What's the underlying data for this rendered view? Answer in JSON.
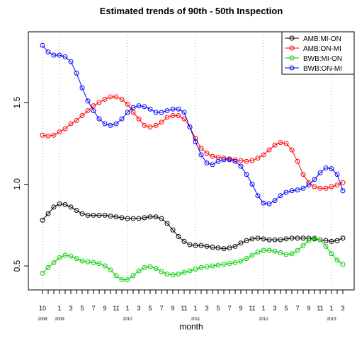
{
  "chart_data": {
    "type": "line",
    "title": "Estimated trends of 90th - 50th Inspection",
    "xlabel": "month",
    "x": [
      0,
      1,
      2,
      3,
      4,
      5,
      6,
      7,
      8,
      9,
      10,
      11,
      12,
      13,
      14,
      15,
      16,
      17,
      18,
      19,
      20,
      21,
      22,
      23,
      24,
      25,
      26,
      27,
      28,
      29,
      30,
      31,
      32,
      33,
      34,
      35,
      36,
      37,
      38,
      39,
      40,
      41,
      42,
      43,
      44,
      45,
      46,
      47,
      48,
      49,
      50,
      51,
      52,
      53
    ],
    "xlim": [
      -2.5,
      55
    ],
    "xticks": [
      {
        "value": 0,
        "label": "10"
      },
      {
        "value": 3,
        "label": "1"
      },
      {
        "value": 5,
        "label": "3"
      },
      {
        "value": 7,
        "label": "5"
      },
      {
        "value": 9,
        "label": "7"
      },
      {
        "value": 11,
        "label": "9"
      },
      {
        "value": 13,
        "label": "11"
      },
      {
        "value": 15,
        "label": "1"
      },
      {
        "value": 17,
        "label": "3"
      },
      {
        "value": 19,
        "label": "5"
      },
      {
        "value": 21,
        "label": "7"
      },
      {
        "value": 23,
        "label": "9"
      },
      {
        "value": 25,
        "label": "11"
      },
      {
        "value": 27,
        "label": "1"
      },
      {
        "value": 29,
        "label": "3"
      },
      {
        "value": 31,
        "label": "5"
      },
      {
        "value": 33,
        "label": "7"
      },
      {
        "value": 35,
        "label": "9"
      },
      {
        "value": 37,
        "label": "11"
      },
      {
        "value": 39,
        "label": "1"
      },
      {
        "value": 41,
        "label": "3"
      },
      {
        "value": 43,
        "label": "5"
      },
      {
        "value": 45,
        "label": "7"
      },
      {
        "value": 47,
        "label": "9"
      },
      {
        "value": 49,
        "label": "11"
      },
      {
        "value": 51,
        "label": "1"
      },
      {
        "value": 53,
        "label": "3"
      }
    ],
    "year_ticks": [
      {
        "value": 0,
        "label": "2008"
      },
      {
        "value": 3,
        "label": "2009"
      },
      {
        "value": 15,
        "label": "2010"
      },
      {
        "value": 27,
        "label": "2011"
      },
      {
        "value": 39,
        "label": "2012"
      },
      {
        "value": 51,
        "label": "2013"
      }
    ],
    "ylim": [
      0.353,
      1.933
    ],
    "yticks": [
      0.5,
      {
        "value": 1,
        "label": "1.0"
      },
      1.5
    ],
    "legend_position": "top-right",
    "series": [
      {
        "name": "AMB:MI-ON",
        "color": "#000000",
        "values": [
          0.78,
          0.82,
          0.86,
          0.88,
          0.875,
          0.86,
          0.84,
          0.82,
          0.81,
          0.81,
          0.81,
          0.81,
          0.805,
          0.8,
          0.795,
          0.79,
          0.79,
          0.79,
          0.795,
          0.8,
          0.8,
          0.79,
          0.76,
          0.72,
          0.68,
          0.65,
          0.63,
          0.625,
          0.625,
          0.62,
          0.615,
          0.61,
          0.605,
          0.61,
          0.62,
          0.64,
          0.655,
          0.665,
          0.67,
          0.665,
          0.66,
          0.66,
          0.66,
          0.665,
          0.67,
          0.67,
          0.67,
          0.67,
          0.665,
          0.66,
          0.655,
          0.65,
          0.655,
          0.67
        ]
      },
      {
        "name": "AMB:ON-MI",
        "color": "#ff0000",
        "values": [
          1.3,
          1.295,
          1.3,
          1.32,
          1.34,
          1.37,
          1.39,
          1.42,
          1.45,
          1.48,
          1.5,
          1.52,
          1.535,
          1.535,
          1.52,
          1.49,
          1.44,
          1.4,
          1.36,
          1.35,
          1.36,
          1.38,
          1.41,
          1.42,
          1.42,
          1.4,
          1.35,
          1.28,
          1.22,
          1.19,
          1.17,
          1.165,
          1.16,
          1.155,
          1.15,
          1.145,
          1.14,
          1.145,
          1.16,
          1.18,
          1.21,
          1.24,
          1.255,
          1.25,
          1.21,
          1.14,
          1.06,
          1.01,
          0.985,
          0.975,
          0.975,
          0.985,
          0.995,
          1.01
        ]
      },
      {
        "name": "BWB:MI-ON",
        "color": "#00cd00",
        "values": [
          0.455,
          0.49,
          0.52,
          0.55,
          0.565,
          0.56,
          0.545,
          0.53,
          0.525,
          0.52,
          0.515,
          0.5,
          0.475,
          0.44,
          0.415,
          0.415,
          0.44,
          0.47,
          0.49,
          0.495,
          0.485,
          0.465,
          0.45,
          0.445,
          0.45,
          0.46,
          0.47,
          0.48,
          0.49,
          0.495,
          0.5,
          0.505,
          0.51,
          0.515,
          0.52,
          0.53,
          0.545,
          0.565,
          0.585,
          0.595,
          0.595,
          0.59,
          0.58,
          0.57,
          0.575,
          0.595,
          0.625,
          0.655,
          0.67,
          0.66,
          0.62,
          0.575,
          0.535,
          0.51
        ]
      },
      {
        "name": "BWB:ON-MI",
        "color": "#0000ff",
        "values": [
          1.85,
          1.81,
          1.79,
          1.79,
          1.78,
          1.75,
          1.68,
          1.59,
          1.51,
          1.45,
          1.4,
          1.37,
          1.36,
          1.37,
          1.4,
          1.44,
          1.47,
          1.48,
          1.475,
          1.46,
          1.44,
          1.44,
          1.45,
          1.46,
          1.46,
          1.44,
          1.35,
          1.26,
          1.18,
          1.13,
          1.12,
          1.14,
          1.15,
          1.15,
          1.14,
          1.11,
          1.06,
          1.0,
          0.93,
          0.885,
          0.88,
          0.9,
          0.93,
          0.95,
          0.96,
          0.965,
          0.975,
          0.995,
          1.03,
          1.07,
          1.1,
          1.095,
          1.06,
          0.96
        ]
      }
    ]
  }
}
